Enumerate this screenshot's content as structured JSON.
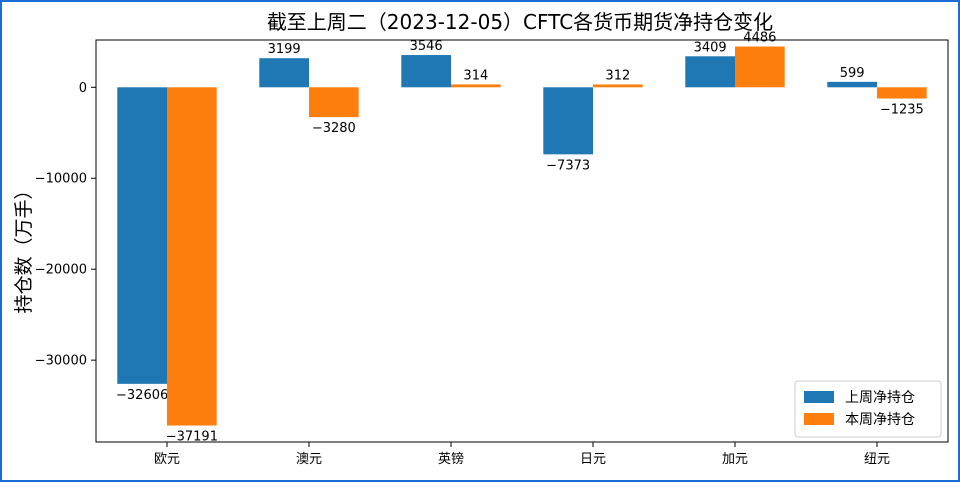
{
  "chart_data": {
    "type": "bar",
    "title": "截至上周二（2023-12-05）CFTC各货币期货净持仓变化",
    "xlabel": "",
    "ylabel": "持仓数（万手）",
    "categories": [
      "欧元",
      "澳元",
      "英镑",
      "日元",
      "加元",
      "纽元"
    ],
    "series": [
      {
        "name": "上周净持仓",
        "color": "#1f77b4",
        "values": [
          -32606,
          3199,
          3546,
          -7373,
          3409,
          599
        ]
      },
      {
        "name": "本周净持仓",
        "color": "#ff7f0e",
        "values": [
          -37191,
          -3280,
          314,
          312,
          4486,
          -1235
        ]
      }
    ],
    "ylim": [
      -39000,
      5200
    ],
    "yticks": [
      0,
      -10000,
      -20000,
      -30000
    ],
    "legend_position": "lower-right",
    "grid": false
  }
}
